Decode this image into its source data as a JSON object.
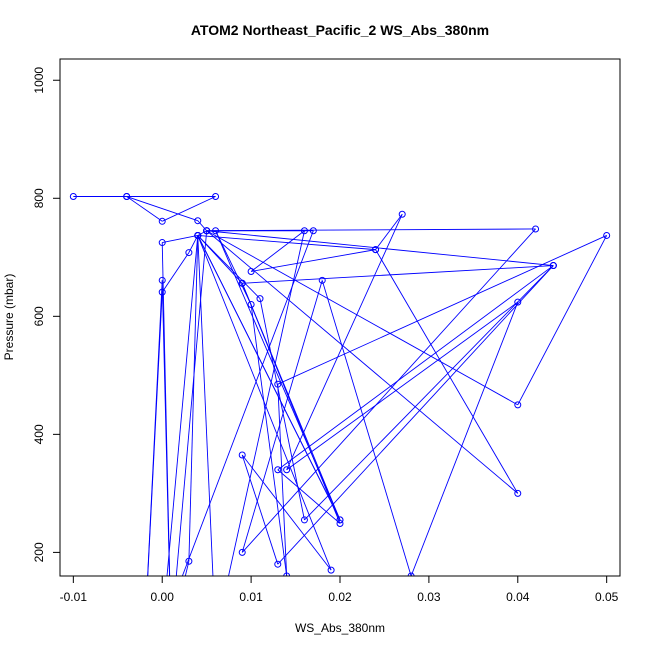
{
  "chart_data": {
    "type": "line",
    "title": "ATOM2 Northeast_Pacific_2 WS_Abs_380nm",
    "xlabel": "WS_Abs_380nm",
    "ylabel": "Pressure (mbar)",
    "xlim": [
      -0.0115,
      0.0515
    ],
    "ylim": [
      1036,
      160
    ],
    "y_reversed": true,
    "x_ticks": [
      -0.01,
      0.0,
      0.01,
      0.02,
      0.03,
      0.04,
      0.05
    ],
    "x_tick_labels": [
      "-0.01",
      "0.00",
      "0.01",
      "0.02",
      "0.03",
      "0.04",
      "0.05"
    ],
    "y_ticks": [
      200,
      400,
      600,
      800,
      1000
    ],
    "y_tick_labels": [
      "200",
      "400",
      "600",
      "800",
      "1000"
    ],
    "grid": false,
    "legend": "none",
    "series": [
      {
        "color": "#0000ff",
        "marker": "open-circle",
        "line": true,
        "points": [
          [
            -0.01,
            803
          ],
          [
            -0.004,
            803
          ],
          [
            0.0,
            761
          ],
          [
            0.006,
            803
          ],
          [
            -0.004,
            803
          ],
          [
            0.004,
            762
          ],
          [
            0.005,
            745
          ],
          [
            0.004,
            737
          ],
          [
            0.003,
            708
          ],
          [
            0.0,
            641
          ],
          [
            -0.002,
            50
          ],
          [
            0.0,
            661
          ],
          [
            0.001,
            50
          ],
          [
            0.0,
            725
          ],
          [
            0.004,
            737
          ],
          [
            0.003,
            185
          ],
          [
            0.001,
            60
          ],
          [
            0.005,
            745
          ],
          [
            0.017,
            745
          ],
          [
            0.0,
            70
          ],
          [
            0.004,
            737
          ],
          [
            0.024,
            713
          ],
          [
            0.01,
            676
          ],
          [
            0.016,
            745
          ],
          [
            0.006,
            60
          ],
          [
            0.004,
            737
          ],
          [
            0.009,
            656
          ],
          [
            0.02,
            249
          ],
          [
            0.013,
            340
          ],
          [
            0.044,
            686
          ],
          [
            0.013,
            180
          ],
          [
            0.009,
            365
          ],
          [
            0.019,
            170
          ],
          [
            0.004,
            737
          ],
          [
            0.02,
            255
          ],
          [
            0.006,
            745
          ],
          [
            0.01,
            620
          ],
          [
            0.014,
            160
          ],
          [
            0.013,
            485
          ],
          [
            0.05,
            737
          ],
          [
            0.04,
            450
          ],
          [
            0.005,
            745
          ],
          [
            0.04,
            300
          ],
          [
            0.024,
            713
          ],
          [
            0.027,
            773
          ],
          [
            0.014,
            340
          ],
          [
            0.04,
            624
          ],
          [
            0.028,
            160
          ],
          [
            0.018,
            661
          ],
          [
            0.009,
            200
          ],
          [
            0.042,
            748
          ],
          [
            0.005,
            745
          ],
          [
            0.044,
            686
          ],
          [
            0.009,
            656
          ],
          [
            0.02,
            255
          ],
          [
            0.004,
            737
          ],
          [
            0.011,
            630
          ],
          [
            0.016,
            255
          ],
          [
            0.044,
            686
          ]
        ]
      }
    ]
  }
}
